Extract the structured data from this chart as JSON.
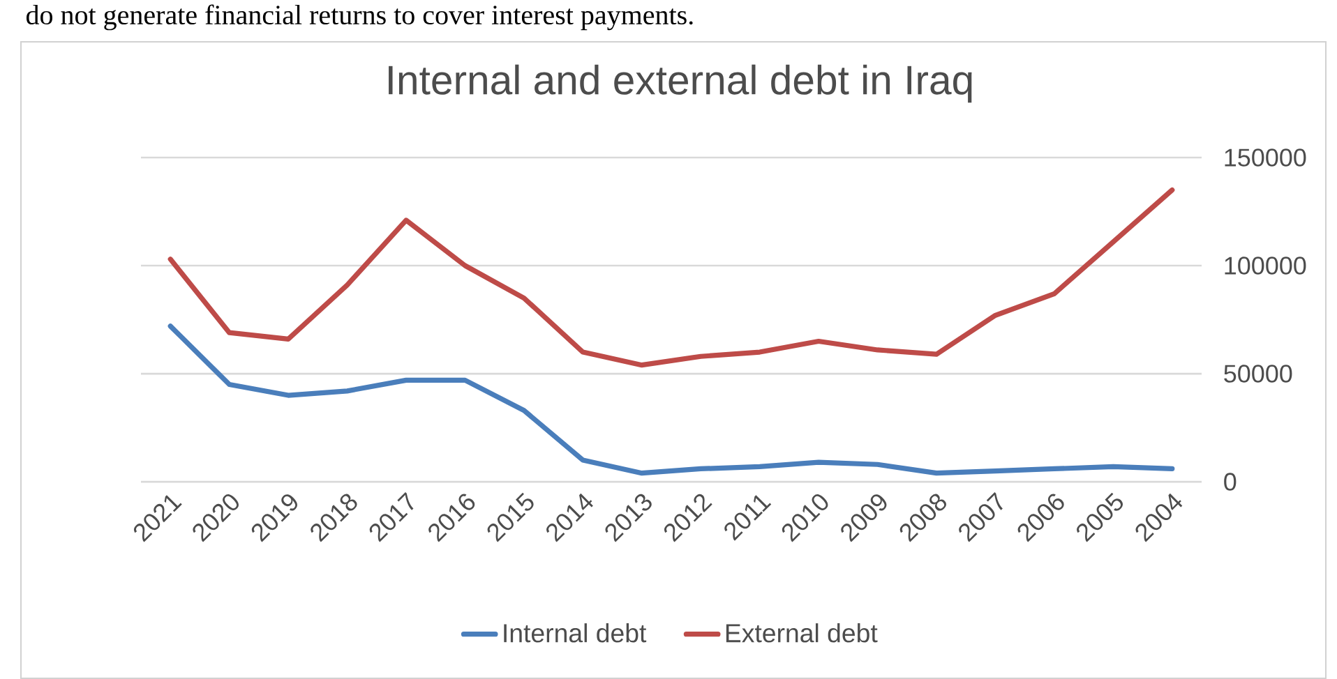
{
  "chart_data": {
    "type": "line",
    "title": "Internal and external debt in Iraq",
    "annotations": [
      "do not generate financial returns to cover interest payments."
    ],
    "categories": [
      "2021",
      "2020",
      "2019",
      "2018",
      "2017",
      "2016",
      "2015",
      "2014",
      "2013",
      "2012",
      "2011",
      "2010",
      "2009",
      "2008",
      "2007",
      "2006",
      "2005",
      "2004"
    ],
    "series": [
      {
        "name": "Internal debt",
        "color": "#4a7ebb",
        "values": [
          72000,
          45000,
          40000,
          42000,
          47000,
          47000,
          33000,
          10000,
          4000,
          6000,
          7000,
          9000,
          8000,
          4000,
          5000,
          6000,
          7000,
          6000
        ]
      },
      {
        "name": "External debt",
        "color": "#be4b48",
        "values": [
          103000,
          69000,
          66000,
          91000,
          121000,
          100000,
          85000,
          60000,
          54000,
          58000,
          60000,
          65000,
          61000,
          59000,
          77000,
          87000,
          111000,
          135000
        ]
      }
    ],
    "ylim": [
      0,
      150000
    ],
    "yticks": [
      0,
      50000,
      100000,
      150000
    ],
    "grid": "y",
    "legend": "bottom",
    "marker": "none",
    "line_style": "solid"
  }
}
